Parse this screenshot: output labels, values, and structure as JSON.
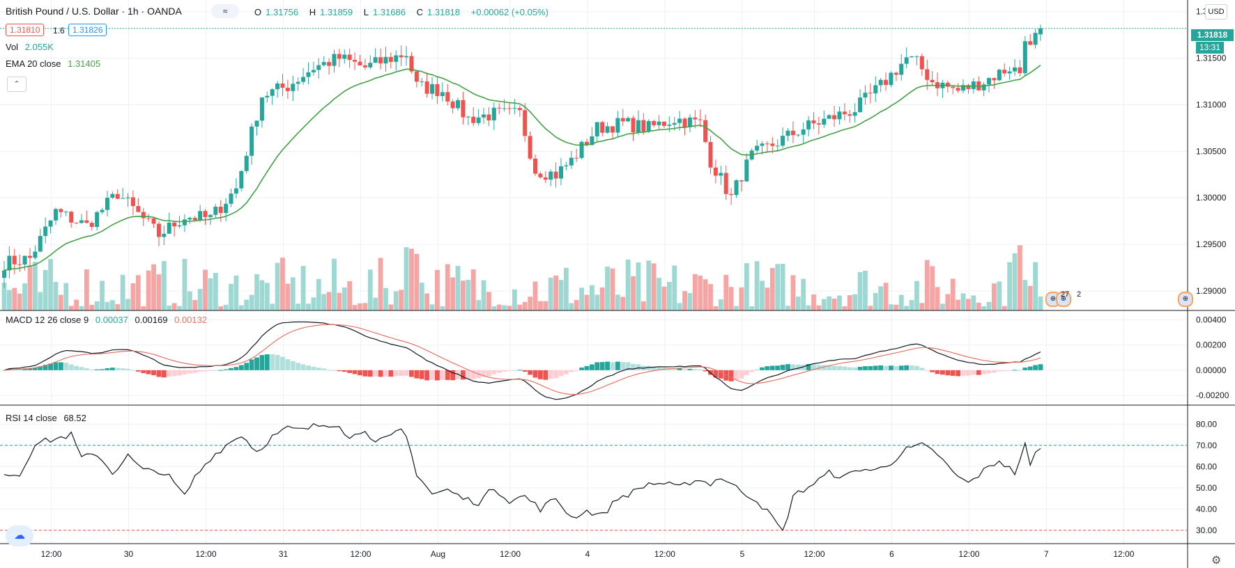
{
  "header": {
    "symbol_title": "British Pound / U.S. Dollar · 1h · OANDA",
    "indicator_toggle": "≈",
    "ohlc": [
      {
        "label": "O",
        "value": "1.31756"
      },
      {
        "label": "H",
        "value": "1.31859"
      },
      {
        "label": "L",
        "value": "1.31686"
      },
      {
        "label": "C",
        "value": "1.31818"
      },
      {
        "label": "",
        "value": "+0.00062 (+0.05%)"
      }
    ],
    "bid": "1.31810",
    "spread": "1.6",
    "ask": "1.31826",
    "vol_label": "Vol",
    "vol_value": "2.055K",
    "ema_label": "EMA 20 close",
    "ema_value": "1.31405",
    "hide_button": "⌃",
    "currency_button": "USD"
  },
  "price_tags": {
    "last_price": "1.31818",
    "countdown": "13:31"
  },
  "panes": {
    "macd_label": "MACD 12 26 close 9",
    "macd_values": [
      "0.00037",
      "0.00169",
      "0.00132"
    ],
    "rsi_label": "RSI 14 close",
    "rsi_value": "68.52"
  },
  "events": {
    "a": "27",
    "b": "2"
  },
  "colors": {
    "up": "#26a69a",
    "down": "#ef5350",
    "up_vol": "#9fd8d2",
    "down_vol": "#f5a6a4",
    "ema": "#43a047",
    "macd": "#131722",
    "signal": "#e57368",
    "hist_pos_strong": "#26a69a",
    "hist_pos_weak": "#b2dfdb",
    "hist_neg_strong": "#ef5350",
    "hist_neg_weak": "#ffcdd2",
    "grid": "#eef0f5",
    "axis": "#131722"
  },
  "chart_data": [
    {
      "type": "candlestick",
      "title": "British Pound / U.S. Dollar · 1h · OANDA",
      "ylim": [
        1.2885,
        1.3205
      ],
      "y_ticks": [
        "1.32000",
        "1.31500",
        "1.31000",
        "1.30500",
        "1.30000",
        "1.29500",
        "1.29000"
      ],
      "x_ticks": [
        "12:00",
        "30",
        "12:00",
        "31",
        "12:00",
        "Aug",
        "12:00",
        "4",
        "12:00",
        "5",
        "12:00",
        "6",
        "12:00",
        "7",
        "12:00"
      ],
      "close_keypoints": [
        [
          0,
          1.293
        ],
        [
          5,
          1.2935
        ],
        [
          10,
          1.2985
        ],
        [
          16,
          1.297
        ],
        [
          22,
          1.3005
        ],
        [
          30,
          1.296
        ],
        [
          35,
          1.298
        ],
        [
          40,
          1.2978
        ],
        [
          45,
          1.301
        ],
        [
          50,
          1.311
        ],
        [
          55,
          1.312
        ],
        [
          60,
          1.314
        ],
        [
          65,
          1.315
        ],
        [
          70,
          1.314
        ],
        [
          75,
          1.315
        ],
        [
          78,
          1.3155
        ],
        [
          80,
          1.312
        ],
        [
          85,
          1.3115
        ],
        [
          90,
          1.3085
        ],
        [
          95,
          1.309
        ],
        [
          100,
          1.309
        ],
        [
          103,
          1.303
        ],
        [
          107,
          1.3025
        ],
        [
          110,
          1.304
        ],
        [
          115,
          1.3075
        ],
        [
          120,
          1.308
        ],
        [
          125,
          1.3075
        ],
        [
          130,
          1.3085
        ],
        [
          135,
          1.308
        ],
        [
          137,
          1.304
        ],
        [
          141,
          1.3
        ],
        [
          143,
          1.3025
        ],
        [
          145,
          1.3045
        ],
        [
          150,
          1.306
        ],
        [
          155,
          1.3075
        ],
        [
          160,
          1.3085
        ],
        [
          165,
          1.3095
        ],
        [
          170,
          1.312
        ],
        [
          175,
          1.315
        ],
        [
          177,
          1.3145
        ],
        [
          180,
          1.3125
        ],
        [
          185,
          1.3115
        ],
        [
          190,
          1.3125
        ],
        [
          195,
          1.314
        ],
        [
          197,
          1.3135
        ],
        [
          198,
          1.3175
        ],
        [
          199,
          1.316
        ],
        [
          200,
          1.3172
        ],
        [
          201,
          1.3182
        ]
      ],
      "ema20_last": 1.31405,
      "volume_last": "2.055K"
    },
    {
      "type": "line",
      "name": "MACD 12 26 close 9",
      "ylim": [
        -0.0025,
        0.0042
      ],
      "y_ticks": [
        "0.00400",
        "0.00200",
        "0.00000",
        "-0.00200"
      ],
      "macd_last": 0.00169,
      "signal_last": 0.00132,
      "hist_last": 0.00037
    },
    {
      "type": "line",
      "name": "RSI 14 close",
      "ylim": [
        25,
        85
      ],
      "y_ticks": [
        "80.00",
        "70.00",
        "60.00",
        "50.00",
        "40.00",
        "30.00"
      ],
      "bands": [
        70,
        30
      ],
      "rsi_keypoints": [
        [
          0,
          57
        ],
        [
          3,
          56
        ],
        [
          6,
          71
        ],
        [
          10,
          73
        ],
        [
          13,
          75
        ],
        [
          15,
          64
        ],
        [
          18,
          66
        ],
        [
          21,
          57
        ],
        [
          24,
          65
        ],
        [
          27,
          58
        ],
        [
          30,
          58
        ],
        [
          32,
          55
        ],
        [
          35,
          46
        ],
        [
          37,
          55
        ],
        [
          40,
          64
        ],
        [
          43,
          70
        ],
        [
          46,
          75
        ],
        [
          49,
          67
        ],
        [
          52,
          74
        ],
        [
          55,
          78
        ],
        [
          58,
          77
        ],
        [
          60,
          79
        ],
        [
          63,
          80
        ],
        [
          65,
          80
        ],
        [
          67,
          73
        ],
        [
          70,
          78
        ],
        [
          72,
          71
        ],
        [
          75,
          74
        ],
        [
          77,
          77
        ],
        [
          78,
          74
        ],
        [
          80,
          57
        ],
        [
          83,
          47
        ],
        [
          86,
          49
        ],
        [
          89,
          45
        ],
        [
          92,
          43
        ],
        [
          95,
          50
        ],
        [
          98,
          44
        ],
        [
          101,
          46
        ],
        [
          104,
          40
        ],
        [
          107,
          45
        ],
        [
          110,
          36
        ],
        [
          113,
          39
        ],
        [
          116,
          37
        ],
        [
          119,
          45
        ],
        [
          122,
          48
        ],
        [
          125,
          52
        ],
        [
          128,
          52
        ],
        [
          131,
          50
        ],
        [
          134,
          54
        ],
        [
          137,
          52
        ],
        [
          139,
          55
        ],
        [
          142,
          50
        ],
        [
          146,
          44
        ],
        [
          149,
          36
        ],
        [
          151,
          29
        ],
        [
          153,
          46
        ],
        [
          157,
          52
        ],
        [
          160,
          57
        ],
        [
          163,
          55
        ],
        [
          166,
          59
        ],
        [
          169,
          58
        ],
        [
          172,
          62
        ],
        [
          175,
          68
        ],
        [
          178,
          70
        ],
        [
          181,
          66
        ],
        [
          184,
          57
        ],
        [
          187,
          52
        ],
        [
          190,
          58
        ],
        [
          193,
          63
        ],
        [
          196,
          57
        ],
        [
          198,
          70
        ],
        [
          199,
          60
        ],
        [
          200,
          66
        ],
        [
          201,
          68.5
        ]
      ],
      "last": 68.52
    }
  ]
}
